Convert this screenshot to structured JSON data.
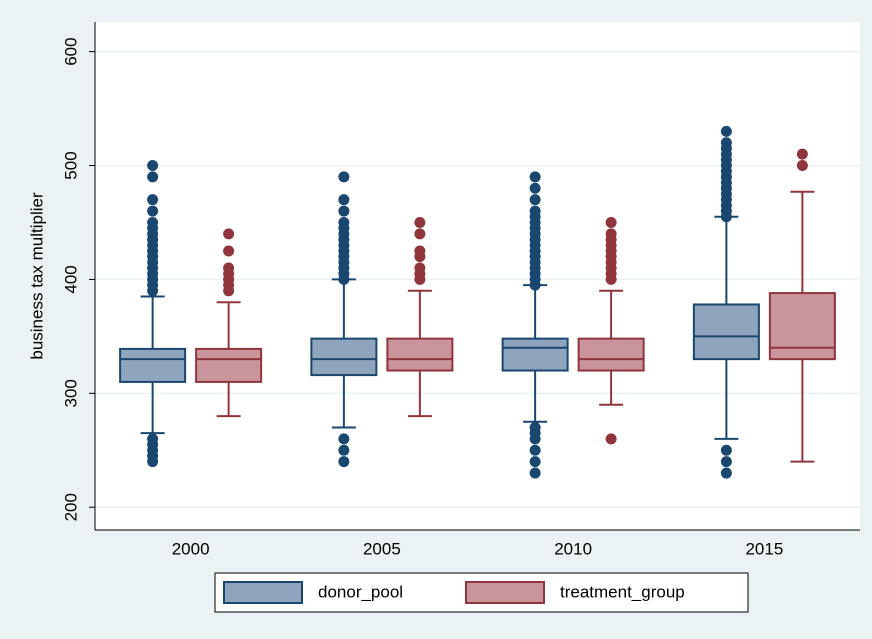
{
  "chart_data": {
    "type": "box",
    "y_label": "business tax multiplier",
    "categories": [
      "2000",
      "2005",
      "2010",
      "2015"
    ],
    "ylim": [
      180,
      626
    ],
    "yticks": [
      200,
      300,
      400,
      500,
      600
    ],
    "grid": true,
    "series": [
      {
        "name": "donor_pool",
        "color": "#8ea5bd",
        "edge_color": "#1a476f",
        "low": [
          265,
          270,
          275,
          260
        ],
        "q1": [
          310,
          316,
          320,
          330
        ],
        "median": [
          330,
          330,
          340,
          350
        ],
        "q3": [
          339,
          348,
          348,
          378
        ],
        "high": [
          385,
          400,
          395,
          455
        ],
        "outliers": [
          [
            240,
            245,
            250,
            255,
            260,
            390,
            395,
            400,
            405,
            410,
            415,
            420,
            425,
            430,
            435,
            440,
            445,
            450,
            460,
            470,
            490,
            500
          ],
          [
            240,
            250,
            260,
            400,
            405,
            410,
            415,
            420,
            425,
            430,
            435,
            440,
            445,
            450,
            460,
            470,
            490
          ],
          [
            230,
            240,
            250,
            260,
            265,
            270,
            395,
            400,
            405,
            410,
            415,
            420,
            425,
            430,
            435,
            440,
            445,
            450,
            455,
            460,
            470,
            480,
            490
          ],
          [
            230,
            240,
            250,
            455,
            460,
            465,
            470,
            475,
            480,
            485,
            490,
            495,
            500,
            505,
            510,
            515,
            520,
            530
          ]
        ]
      },
      {
        "name": "treatment_group",
        "color": "#c9949b",
        "edge_color": "#90353b",
        "low": [
          280,
          280,
          290,
          240
        ],
        "q1": [
          310,
          320,
          320,
          330
        ],
        "median": [
          330,
          330,
          330,
          340
        ],
        "q3": [
          339,
          348,
          348,
          388
        ],
        "high": [
          380,
          390,
          390,
          477
        ],
        "outliers": [
          [
            390,
            395,
            400,
            405,
            410,
            425,
            440
          ],
          [
            400,
            405,
            410,
            420,
            425,
            440,
            450
          ],
          [
            260,
            400,
            405,
            410,
            415,
            420,
            425,
            430,
            435,
            440,
            450
          ],
          [
            500,
            510
          ]
        ]
      }
    ]
  }
}
